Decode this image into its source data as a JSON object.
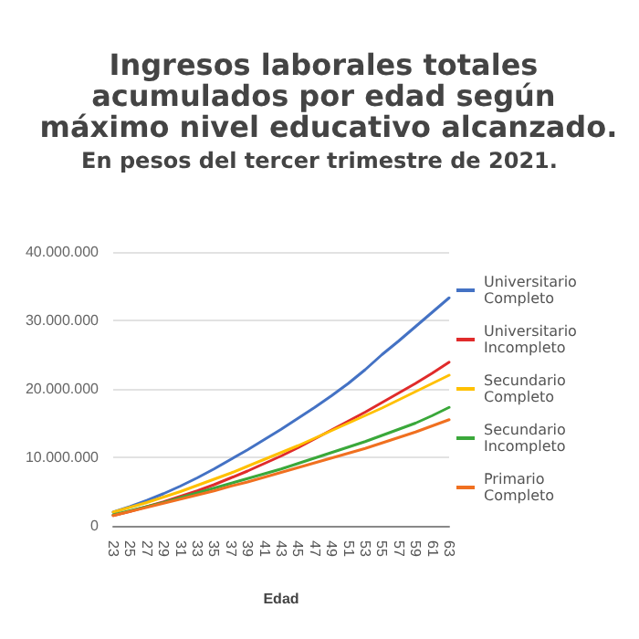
{
  "chart_data": {
    "type": "line",
    "title": "Ingresos laborales totales acumulados por edad según máximo nivel educativo alcanzado.",
    "subtitle": "En pesos del tercer trimestre de 2021.",
    "xlabel": "Edad",
    "categories": [
      "23",
      "25",
      "27",
      "29",
      "31",
      "33",
      "35",
      "37",
      "39",
      "41",
      "43",
      "45",
      "47",
      "49",
      "51",
      "53",
      "55",
      "57",
      "59",
      "61",
      "63"
    ],
    "series": [
      {
        "name": "Universitario Completo",
        "color": "#4472c4",
        "values": [
          2000000,
          2800000,
          3700000,
          4700000,
          5800000,
          7000000,
          8300000,
          9700000,
          11100000,
          12600000,
          14100000,
          15700000,
          17300000,
          19000000,
          20800000,
          22800000,
          25000000,
          27000000,
          29100000,
          31200000,
          33300000
        ]
      },
      {
        "name": "Universitario Incompleto",
        "color": "#e02b2b",
        "values": [
          1500000,
          2100000,
          2800000,
          3500000,
          4300000,
          5100000,
          6000000,
          7000000,
          8000000,
          9100000,
          10200000,
          11400000,
          12700000,
          14000000,
          15300000,
          16600000,
          18000000,
          19400000,
          20800000,
          22300000,
          23900000
        ]
      },
      {
        "name": "Secundario Completo",
        "color": "#ffc000",
        "values": [
          2000000,
          2700000,
          3400000,
          4200000,
          5000000,
          5900000,
          6800000,
          7700000,
          8700000,
          9700000,
          10700000,
          11700000,
          12800000,
          13900000,
          15000000,
          16100000,
          17200000,
          18400000,
          19600000,
          20800000,
          22000000
        ]
      },
      {
        "name": "Secundario Incompleto",
        "color": "#3aa83a",
        "values": [
          1600000,
          2200000,
          2800000,
          3400000,
          4100000,
          4800000,
          5500000,
          6200000,
          6900000,
          7600000,
          8300000,
          9100000,
          9900000,
          10700000,
          11500000,
          12300000,
          13200000,
          14100000,
          15000000,
          16100000,
          17300000
        ]
      },
      {
        "name": "Primario Completo",
        "color": "#f07020",
        "values": [
          1500000,
          2100000,
          2700000,
          3300000,
          3900000,
          4500000,
          5100000,
          5800000,
          6400000,
          7100000,
          7800000,
          8500000,
          9200000,
          9900000,
          10600000,
          11300000,
          12100000,
          12900000,
          13700000,
          14600000,
          15500000
        ]
      }
    ],
    "ylim": [
      0,
      40000000
    ],
    "yticks": [
      {
        "value": 0,
        "label": "0"
      },
      {
        "value": 10000000,
        "label": "10.000.000"
      },
      {
        "value": 20000000,
        "label": "20.000.000"
      },
      {
        "value": 30000000,
        "label": "30.000.000"
      },
      {
        "value": 40000000,
        "label": "40.000.000"
      }
    ],
    "grid": "y",
    "legend": "right",
    "marker": "none",
    "line_style": "solid"
  }
}
